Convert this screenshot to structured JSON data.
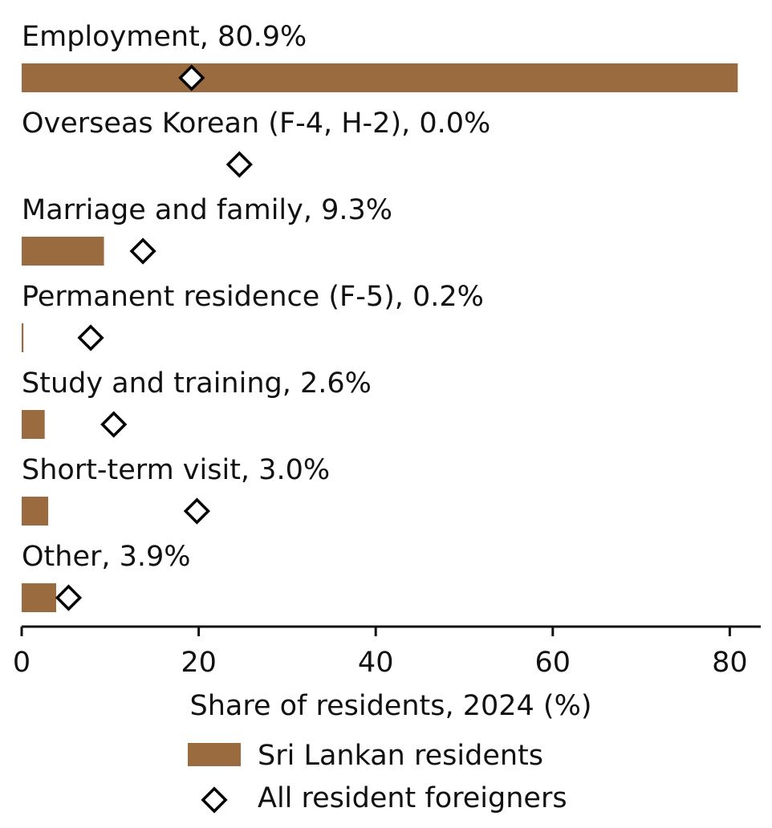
{
  "chart_data": {
    "type": "bar",
    "orientation": "horizontal",
    "categories": [
      "Employment",
      "Overseas Korean (F-4, H-2)",
      "Marriage and family",
      "Permanent residence (F-5)",
      "Study and training",
      "Short-term visit",
      "Other"
    ],
    "category_labels": [
      "Employment, 80.9%",
      "Overseas Korean (F-4, H-2), 0.0%",
      "Marriage and family, 9.3%",
      "Permanent residence (F-5), 0.2%",
      "Study and training, 2.6%",
      "Short-term visit, 3.0%",
      "Other, 3.9%"
    ],
    "series": [
      {
        "name": "Sri Lankan residents",
        "kind": "bar",
        "color": "#9a6b3f",
        "values": [
          80.9,
          0.0,
          9.3,
          0.2,
          2.6,
          3.0,
          3.9
        ]
      },
      {
        "name": "All resident foreigners",
        "kind": "marker-diamond",
        "color": "#000000",
        "values": [
          19.2,
          24.6,
          13.7,
          7.8,
          10.4,
          19.8,
          5.3
        ]
      }
    ],
    "xlabel": "Share of residents, 2024 (%)",
    "ylabel": "",
    "xlim": [
      0,
      83.5
    ],
    "xticks": [
      0,
      20,
      40,
      60,
      80
    ],
    "grid": false,
    "legend_position": "bottom-center"
  }
}
